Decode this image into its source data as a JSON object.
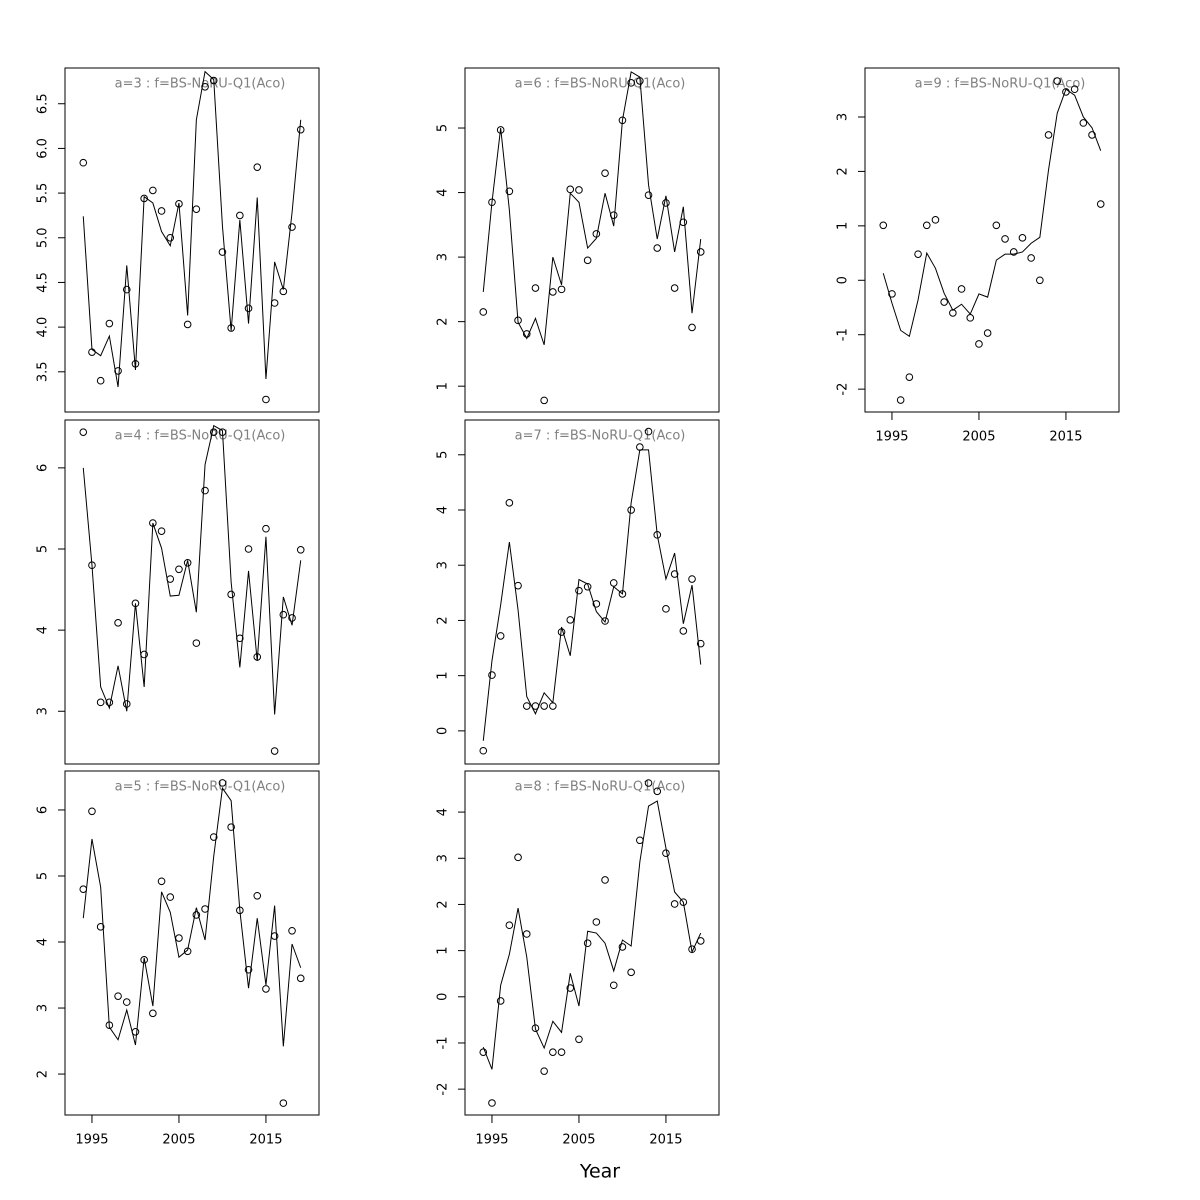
{
  "x_label": "Year",
  "chart_data": [
    {
      "type": "line",
      "title": "a=3 : f=BS-NoRU-Q1(Aco)",
      "x": [
        1994,
        1995,
        1996,
        1997,
        1998,
        1999,
        2000,
        2001,
        2002,
        2003,
        2004,
        2005,
        2006,
        2007,
        2008,
        2009,
        2010,
        2011,
        2012,
        2013,
        2014,
        2015,
        2016,
        2017,
        2018,
        2019
      ],
      "series": [
        {
          "marker": "circle",
          "color": "#000000",
          "values": [
            5.84,
            3.72,
            3.4,
            4.04,
            3.51,
            4.42,
            3.59,
            5.44,
            5.53,
            5.3,
            5.0,
            5.38,
            4.03,
            5.32,
            6.69,
            6.76,
            4.84,
            3.99,
            5.25,
            4.21,
            5.79,
            3.19,
            4.27,
            4.4,
            5.12,
            6.21
          ]
        },
        {
          "marker": "line",
          "color": "#000000",
          "values": [
            5.24,
            3.75,
            3.68,
            3.9,
            3.33,
            4.69,
            3.52,
            5.46,
            5.39,
            5.07,
            4.91,
            5.39,
            4.13,
            6.32,
            6.86,
            6.77,
            5.13,
            3.96,
            5.2,
            4.04,
            5.45,
            3.42,
            4.73,
            4.42,
            5.28,
            6.32
          ]
        }
      ],
      "xlim": [
        1991.9,
        2021.1
      ],
      "ylim": [
        3.05,
        6.9
      ],
      "yticks": [
        3.5,
        {
          "value": 4,
          "label": "4.0"
        },
        4.5,
        {
          "value": 5,
          "label": "5.0"
        },
        5.5,
        {
          "value": 6,
          "label": "6.0"
        },
        6.5
      ]
    },
    {
      "type": "line",
      "title": "a=4 : f=BS-NoRU-Q1(Aco)",
      "x": [
        1994,
        1995,
        1996,
        1997,
        1998,
        1999,
        2000,
        2001,
        2002,
        2003,
        2004,
        2005,
        2006,
        2007,
        2008,
        2009,
        2010,
        2011,
        2012,
        2013,
        2014,
        2015,
        2016,
        2017,
        2018,
        2019
      ],
      "series": [
        {
          "marker": "circle",
          "color": "#000000",
          "values": [
            6.44,
            4.8,
            3.11,
            3.11,
            4.09,
            3.09,
            4.33,
            3.7,
            5.32,
            5.22,
            4.63,
            4.75,
            4.83,
            3.84,
            5.72,
            6.44,
            6.44,
            4.44,
            3.9,
            5.0,
            3.67,
            5.25,
            2.51,
            4.19,
            4.15,
            4.99
          ]
        },
        {
          "marker": "line",
          "color": "#000000",
          "values": [
            6.0,
            4.8,
            3.3,
            3.04,
            3.56,
            3.0,
            4.33,
            3.3,
            5.32,
            5.01,
            4.42,
            4.43,
            4.86,
            4.22,
            6.04,
            6.52,
            6.46,
            4.59,
            3.54,
            4.73,
            3.62,
            5.15,
            2.96,
            4.41,
            4.06,
            4.86
          ]
        }
      ],
      "xlim": [
        1991.9,
        2021.1
      ],
      "ylim": [
        2.35,
        6.59
      ],
      "yticks": [
        3,
        4,
        5,
        6
      ]
    },
    {
      "type": "line",
      "title": "a=5 : f=BS-NoRU-Q1(Aco)",
      "x": [
        1994,
        1995,
        1996,
        1997,
        1998,
        1999,
        2000,
        2001,
        2002,
        2003,
        2004,
        2005,
        2006,
        2007,
        2008,
        2009,
        2010,
        2011,
        2012,
        2013,
        2014,
        2015,
        2016,
        2017,
        2018,
        2019
      ],
      "series": [
        {
          "marker": "circle",
          "color": "#000000",
          "values": [
            4.8,
            5.98,
            4.23,
            2.74,
            3.18,
            3.09,
            2.64,
            3.73,
            2.92,
            4.92,
            4.68,
            4.06,
            3.86,
            4.41,
            4.5,
            5.59,
            6.41,
            5.74,
            4.48,
            3.58,
            4.7,
            3.29,
            4.09,
            1.56,
            4.17,
            3.45
          ]
        },
        {
          "marker": "line",
          "color": "#000000",
          "values": [
            4.36,
            5.56,
            4.83,
            2.71,
            2.52,
            2.97,
            2.44,
            3.76,
            3.03,
            4.76,
            4.45,
            3.77,
            3.88,
            4.52,
            4.03,
            5.3,
            6.33,
            6.14,
            4.48,
            3.3,
            4.36,
            3.35,
            4.55,
            2.42,
            3.97,
            3.61
          ]
        }
      ],
      "xlim": [
        1991.9,
        2021.1
      ],
      "ylim": [
        1.38,
        6.59
      ],
      "yticks": [
        2,
        3,
        4,
        5,
        6
      ],
      "xticks": [
        1995,
        2005,
        2015
      ]
    },
    {
      "type": "line",
      "title": "a=6 : f=BS-NoRU-Q1(Aco)",
      "x": [
        1994,
        1995,
        1996,
        1997,
        1998,
        1999,
        2000,
        2001,
        2002,
        2003,
        2004,
        2005,
        2006,
        2007,
        2008,
        2009,
        2010,
        2011,
        2012,
        2013,
        2014,
        2015,
        2016,
        2017,
        2018,
        2019
      ],
      "series": [
        {
          "marker": "circle",
          "color": "#000000",
          "values": [
            2.15,
            3.85,
            4.97,
            4.02,
            2.02,
            1.81,
            2.52,
            0.78,
            2.46,
            2.5,
            4.05,
            4.04,
            2.95,
            3.36,
            4.3,
            3.65,
            5.12,
            5.7,
            5.73,
            3.96,
            3.14,
            3.84,
            2.52,
            3.54,
            1.91,
            3.08
          ]
        },
        {
          "marker": "line",
          "color": "#000000",
          "values": [
            2.46,
            3.85,
            5.0,
            3.73,
            1.99,
            1.74,
            2.05,
            1.64,
            3.0,
            2.57,
            3.99,
            3.85,
            3.14,
            3.29,
            3.99,
            3.48,
            5.12,
            5.87,
            5.79,
            4.12,
            3.28,
            3.95,
            3.08,
            3.78,
            2.13,
            3.28
          ]
        }
      ],
      "xlim": [
        1991.9,
        2021.1
      ],
      "ylim": [
        0.6,
        5.93
      ],
      "yticks": [
        1,
        2,
        3,
        4,
        5
      ]
    },
    {
      "type": "line",
      "title": "a=7 : f=BS-NoRU-Q1(Aco)",
      "x": [
        1994,
        1995,
        1996,
        1997,
        1998,
        1999,
        2000,
        2001,
        2002,
        2003,
        2004,
        2005,
        2006,
        2007,
        2008,
        2009,
        2010,
        2011,
        2012,
        2013,
        2014,
        2015,
        2016,
        2017,
        2018,
        2019
      ],
      "series": [
        {
          "marker": "circle",
          "color": "#000000",
          "values": [
            -0.36,
            1.01,
            1.72,
            4.13,
            2.63,
            0.45,
            0.45,
            0.45,
            0.45,
            1.79,
            2.01,
            2.54,
            2.61,
            2.3,
            1.99,
            2.68,
            2.48,
            4.0,
            5.14,
            5.42,
            3.55,
            2.21,
            2.84,
            1.81,
            2.75,
            1.58
          ]
        },
        {
          "marker": "line",
          "color": "#000000",
          "values": [
            -0.18,
            1.27,
            2.28,
            3.42,
            2.19,
            0.62,
            0.31,
            0.69,
            0.51,
            1.88,
            1.36,
            2.74,
            2.66,
            2.16,
            1.97,
            2.61,
            2.48,
            4.13,
            5.09,
            5.09,
            3.55,
            2.75,
            3.22,
            1.94,
            2.64,
            1.2
          ]
        }
      ],
      "xlim": [
        1991.9,
        2021.1
      ],
      "ylim": [
        -0.6,
        5.63
      ],
      "yticks": [
        0,
        1,
        2,
        3,
        4,
        5
      ]
    },
    {
      "type": "line",
      "title": "a=8 : f=BS-NoRU-Q1(Aco)",
      "x": [
        1994,
        1995,
        1996,
        1997,
        1998,
        1999,
        2000,
        2001,
        2002,
        2003,
        2004,
        2005,
        2006,
        2007,
        2008,
        2009,
        2010,
        2011,
        2012,
        2013,
        2014,
        2015,
        2016,
        2017,
        2018,
        2019
      ],
      "series": [
        {
          "marker": "circle",
          "color": "#000000",
          "values": [
            -1.2,
            -2.3,
            -0.09,
            1.55,
            3.02,
            1.36,
            -0.68,
            -1.61,
            -1.2,
            -1.2,
            0.19,
            -0.92,
            1.16,
            1.62,
            2.53,
            0.25,
            1.08,
            0.53,
            3.39,
            4.63,
            4.45,
            3.11,
            2.01,
            2.05,
            1.03,
            1.21
          ]
        },
        {
          "marker": "line",
          "color": "#000000",
          "values": [
            -1.09,
            -1.57,
            0.25,
            0.92,
            1.92,
            0.86,
            -0.7,
            -1.11,
            -0.53,
            -0.77,
            0.51,
            -0.2,
            1.42,
            1.38,
            1.16,
            0.56,
            1.23,
            1.1,
            2.92,
            4.13,
            4.24,
            3.22,
            2.27,
            2.05,
            0.97,
            1.38
          ]
        }
      ],
      "xlim": [
        1991.9,
        2021.1
      ],
      "ylim": [
        -2.56,
        4.89
      ],
      "yticks": [
        -2,
        -1,
        0,
        1,
        2,
        3,
        4
      ],
      "xticks": [
        1995,
        2005,
        2015
      ]
    },
    {
      "type": "line",
      "title": "a=9 : f=BS-NoRU-Q1(Aco)",
      "x": [
        1994,
        1995,
        1996,
        1997,
        1998,
        1999,
        2000,
        2001,
        2002,
        2003,
        2004,
        2005,
        2006,
        2007,
        2008,
        2009,
        2010,
        2011,
        2012,
        2013,
        2014,
        2015,
        2016,
        2017,
        2018,
        2019
      ],
      "series": [
        {
          "marker": "circle",
          "color": "#000000",
          "values": [
            1.01,
            -0.25,
            -2.2,
            -1.78,
            0.48,
            1.01,
            1.11,
            -0.4,
            -0.6,
            -0.16,
            -0.69,
            -1.17,
            -0.97,
            1.01,
            0.76,
            0.52,
            0.78,
            0.41,
            0.0,
            2.67,
            3.66,
            3.46,
            3.51,
            2.89,
            2.67,
            1.4
          ]
        },
        {
          "marker": "line",
          "color": "#000000",
          "values": [
            0.13,
            -0.42,
            -0.92,
            -1.03,
            -0.36,
            0.5,
            0.22,
            -0.24,
            -0.55,
            -0.44,
            -0.62,
            -0.25,
            -0.31,
            0.37,
            0.48,
            0.48,
            0.52,
            0.68,
            0.79,
            2.03,
            3.07,
            3.51,
            3.4,
            3.0,
            2.8,
            2.38
          ]
        }
      ],
      "xlim": [
        1991.9,
        2021.1
      ],
      "ylim": [
        -2.42,
        3.9
      ],
      "yticks": [
        -2,
        -1,
        0,
        1,
        2,
        3
      ],
      "xticks": [
        1995,
        2005,
        2015
      ]
    }
  ]
}
